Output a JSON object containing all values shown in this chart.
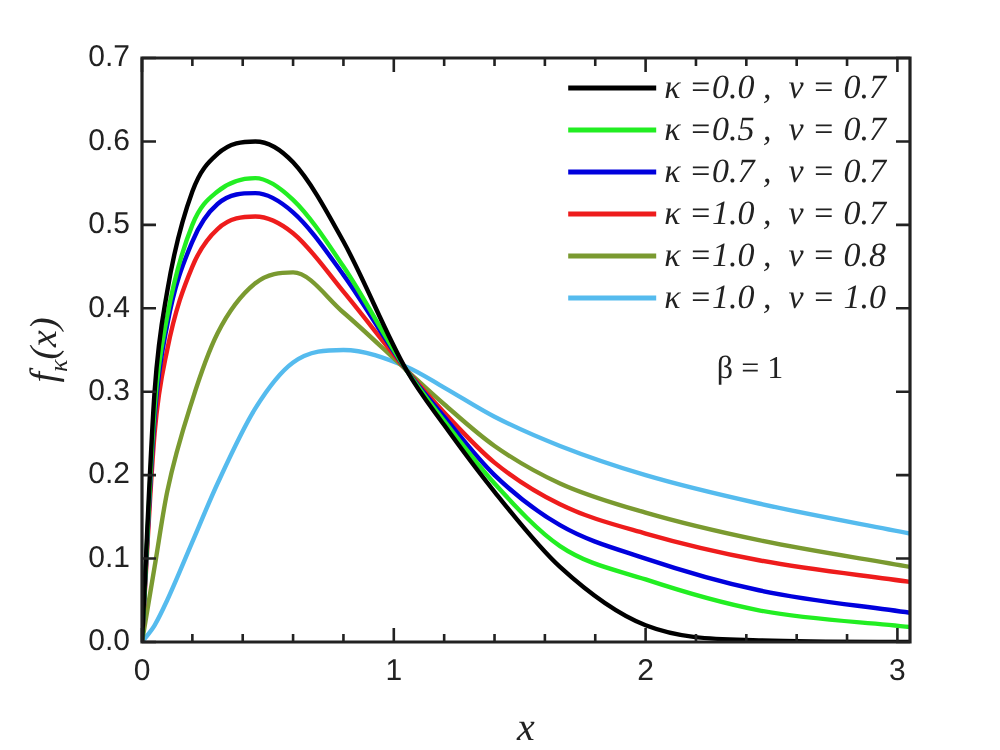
{
  "chart_data": {
    "type": "line",
    "xlabel": "x",
    "ylabel": "f$_{κ}$(x)",
    "x": [
      0,
      0.05,
      0.1,
      0.2,
      0.3,
      0.45,
      0.6,
      0.8,
      1.05,
      1.2,
      1.4,
      1.66,
      2.0,
      2.45,
      3.05
    ],
    "series": [
      {
        "name": "κ =0.0 ,  ν = 0.7",
        "color": "#000000",
        "values": [
          0,
          0.3,
          0.42,
          0.54,
          0.585,
          0.6,
          0.575,
          0.48,
          0.326,
          0.26,
          0.18,
          0.09,
          0.02,
          0.002,
          0
        ]
      },
      {
        "name": "κ =0.5 ,  ν = 0.7",
        "color": "#22ee22",
        "values": [
          0,
          0.28,
          0.39,
          0.5,
          0.54,
          0.556,
          0.53,
          0.45,
          0.326,
          0.265,
          0.19,
          0.115,
          0.075,
          0.038,
          0.018
        ]
      },
      {
        "name": "κ =0.7 ,  ν = 0.7",
        "color": "#0000dd",
        "values": [
          0,
          0.27,
          0.38,
          0.48,
          0.525,
          0.538,
          0.515,
          0.44,
          0.326,
          0.27,
          0.2,
          0.14,
          0.1,
          0.062,
          0.035
        ]
      },
      {
        "name": "κ =1.0 ,  ν = 0.7",
        "color": "#ee1c1c",
        "values": [
          0,
          0.25,
          0.35,
          0.45,
          0.495,
          0.51,
          0.49,
          0.42,
          0.326,
          0.275,
          0.215,
          0.165,
          0.13,
          0.098,
          0.072
        ]
      },
      {
        "name": "κ =1.0 ,  ν = 0.8",
        "color": "#7a9a30",
        "values": [
          0,
          0.09,
          0.18,
          0.29,
          0.37,
          0.43,
          0.443,
          0.395,
          0.326,
          0.285,
          0.235,
          0.19,
          0.155,
          0.122,
          0.09
        ]
      },
      {
        "name": "κ =1.0 ,  ν = 1.0",
        "color": "#55bbee",
        "values": [
          0,
          0.02,
          0.05,
          0.12,
          0.19,
          0.28,
          0.335,
          0.35,
          0.33,
          0.305,
          0.27,
          0.235,
          0.2,
          0.166,
          0.13
        ]
      }
    ],
    "xlim": [
      0,
      3.05
    ],
    "xticks": [
      0,
      {
        "value": 0.2,
        "label": null
      },
      {
        "value": 0.4,
        "label": null
      },
      {
        "value": 0.6,
        "label": null
      },
      {
        "value": 0.8,
        "label": null
      },
      1,
      {
        "value": 1.2,
        "label": null
      },
      {
        "value": 1.4,
        "label": null
      },
      {
        "value": 1.6,
        "label": null
      },
      {
        "value": 1.8,
        "label": null
      },
      2,
      {
        "value": 2.2,
        "label": null
      },
      {
        "value": 2.4,
        "label": null
      },
      {
        "value": 2.6,
        "label": null
      },
      {
        "value": 2.8,
        "label": null
      },
      3
    ],
    "ylim": [
      0,
      0.7
    ],
    "yticks": [
      {
        "value": 0,
        "label": "0.0"
      },
      0.1,
      0.2,
      0.3,
      0.4,
      0.5,
      0.6,
      0.7
    ],
    "grid": false,
    "legend": "top right",
    "annotations": [
      "β = 1"
    ]
  }
}
